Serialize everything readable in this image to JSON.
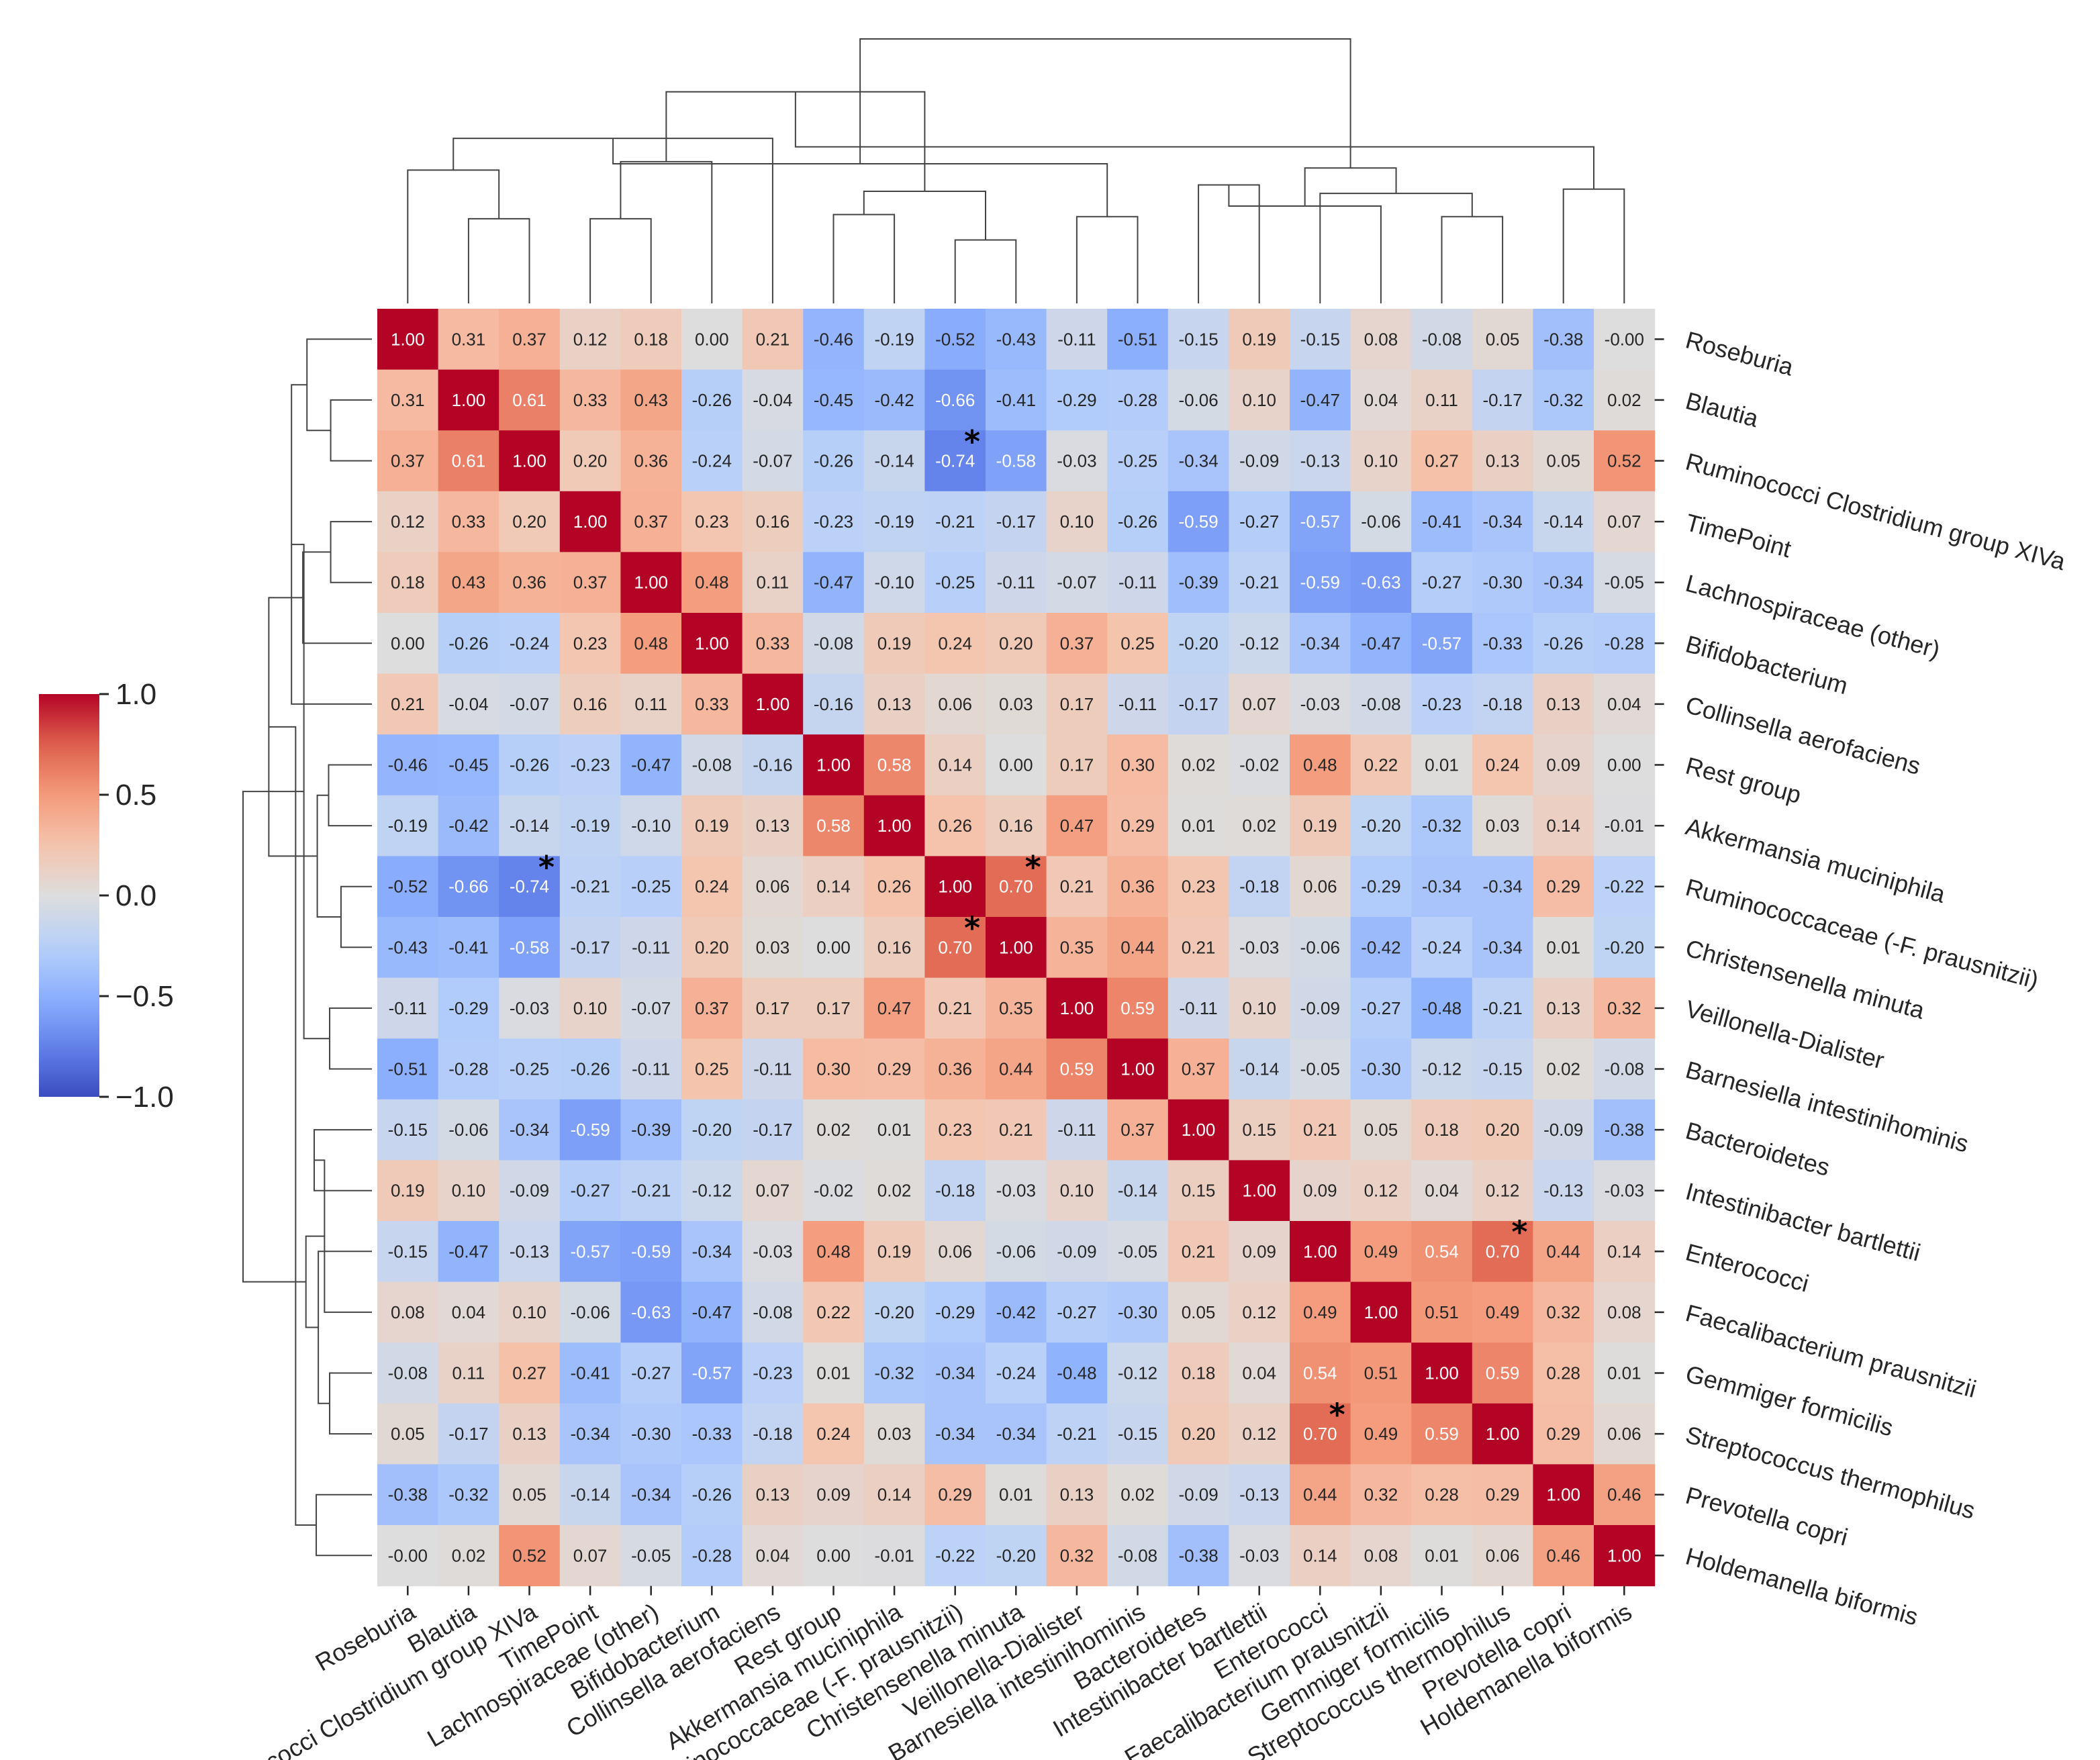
{
  "chart_data": {
    "type": "heatmap",
    "title": "",
    "variant": "clustered correlation heatmap with dendrograms",
    "labels": [
      "Roseburia",
      "Blautia",
      "Ruminococci Clostridium group XIVa",
      "TimePoint",
      "Lachnospiraceae (other)",
      "Bifidobacterium",
      "Collinsella aerofaciens",
      "Rest group",
      "Akkermansia muciniphila",
      "Ruminococcaceae (-F. prausnitzii)",
      "Christensenella minuta",
      "Veillonella-Dialister",
      "Barnesiella intestinihominis",
      "Bacteroidetes",
      "Intestinibacter bartlettii",
      "Enterococci",
      "Faecalibacterium prausnitzii",
      "Gemmiger formicilis",
      "Streptococcus thermophilus",
      "Prevotella copri",
      "Holdemanella biformis"
    ],
    "matrix": [
      [
        "1.00",
        "0.31",
        "0.37",
        "0.12",
        "0.18",
        "0.00",
        "0.21",
        "-0.46",
        "-0.19",
        "-0.52",
        "-0.43",
        "-0.11",
        "-0.51",
        "-0.15",
        "0.19",
        "-0.15",
        "0.08",
        "-0.08",
        "0.05",
        "-0.38",
        "-0.00"
      ],
      [
        "0.31",
        "1.00",
        "0.61",
        "0.33",
        "0.43",
        "-0.26",
        "-0.04",
        "-0.45",
        "-0.42",
        "-0.66",
        "-0.41",
        "-0.29",
        "-0.28",
        "-0.06",
        "0.10",
        "-0.47",
        "0.04",
        "0.11",
        "-0.17",
        "-0.32",
        "0.02"
      ],
      [
        "0.37",
        "0.61",
        "1.00",
        "0.20",
        "0.36",
        "-0.24",
        "-0.07",
        "-0.26",
        "-0.14",
        "-0.74",
        "-0.58",
        "-0.03",
        "-0.25",
        "-0.34",
        "-0.09",
        "-0.13",
        "0.10",
        "0.27",
        "0.13",
        "0.05",
        "0.52"
      ],
      [
        "0.12",
        "0.33",
        "0.20",
        "1.00",
        "0.37",
        "0.23",
        "0.16",
        "-0.23",
        "-0.19",
        "-0.21",
        "-0.17",
        "0.10",
        "-0.26",
        "-0.59",
        "-0.27",
        "-0.57",
        "-0.06",
        "-0.41",
        "-0.34",
        "-0.14",
        "0.07"
      ],
      [
        "0.18",
        "0.43",
        "0.36",
        "0.37",
        "1.00",
        "0.48",
        "0.11",
        "-0.47",
        "-0.10",
        "-0.25",
        "-0.11",
        "-0.07",
        "-0.11",
        "-0.39",
        "-0.21",
        "-0.59",
        "-0.63",
        "-0.27",
        "-0.30",
        "-0.34",
        "-0.05"
      ],
      [
        "0.00",
        "-0.26",
        "-0.24",
        "0.23",
        "0.48",
        "1.00",
        "0.33",
        "-0.08",
        "0.19",
        "0.24",
        "0.20",
        "0.37",
        "0.25",
        "-0.20",
        "-0.12",
        "-0.34",
        "-0.47",
        "-0.57",
        "-0.33",
        "-0.26",
        "-0.28"
      ],
      [
        "0.21",
        "-0.04",
        "-0.07",
        "0.16",
        "0.11",
        "0.33",
        "1.00",
        "-0.16",
        "0.13",
        "0.06",
        "0.03",
        "0.17",
        "-0.11",
        "-0.17",
        "0.07",
        "-0.03",
        "-0.08",
        "-0.23",
        "-0.18",
        "0.13",
        "0.04"
      ],
      [
        "-0.46",
        "-0.45",
        "-0.26",
        "-0.23",
        "-0.47",
        "-0.08",
        "-0.16",
        "1.00",
        "0.58",
        "0.14",
        "0.00",
        "0.17",
        "0.30",
        "0.02",
        "-0.02",
        "0.48",
        "0.22",
        "0.01",
        "0.24",
        "0.09",
        "0.00"
      ],
      [
        "-0.19",
        "-0.42",
        "-0.14",
        "-0.19",
        "-0.10",
        "0.19",
        "0.13",
        "0.58",
        "1.00",
        "0.26",
        "0.16",
        "0.47",
        "0.29",
        "0.01",
        "0.02",
        "0.19",
        "-0.20",
        "-0.32",
        "0.03",
        "0.14",
        "-0.01"
      ],
      [
        "-0.52",
        "-0.66",
        "-0.74",
        "-0.21",
        "-0.25",
        "0.24",
        "0.06",
        "0.14",
        "0.26",
        "1.00",
        "0.70",
        "0.21",
        "0.36",
        "0.23",
        "-0.18",
        "0.06",
        "-0.29",
        "-0.34",
        "-0.34",
        "0.29",
        "-0.22"
      ],
      [
        "-0.43",
        "-0.41",
        "-0.58",
        "-0.17",
        "-0.11",
        "0.20",
        "0.03",
        "0.00",
        "0.16",
        "0.70",
        "1.00",
        "0.35",
        "0.44",
        "0.21",
        "-0.03",
        "-0.06",
        "-0.42",
        "-0.24",
        "-0.34",
        "0.01",
        "-0.20"
      ],
      [
        "-0.11",
        "-0.29",
        "-0.03",
        "0.10",
        "-0.07",
        "0.37",
        "0.17",
        "0.17",
        "0.47",
        "0.21",
        "0.35",
        "1.00",
        "0.59",
        "-0.11",
        "0.10",
        "-0.09",
        "-0.27",
        "-0.48",
        "-0.21",
        "0.13",
        "0.32"
      ],
      [
        "-0.51",
        "-0.28",
        "-0.25",
        "-0.26",
        "-0.11",
        "0.25",
        "-0.11",
        "0.30",
        "0.29",
        "0.36",
        "0.44",
        "0.59",
        "1.00",
        "0.37",
        "-0.14",
        "-0.05",
        "-0.30",
        "-0.12",
        "-0.15",
        "0.02",
        "-0.08"
      ],
      [
        "-0.15",
        "-0.06",
        "-0.34",
        "-0.59",
        "-0.39",
        "-0.20",
        "-0.17",
        "0.02",
        "0.01",
        "0.23",
        "0.21",
        "-0.11",
        "0.37",
        "1.00",
        "0.15",
        "0.21",
        "0.05",
        "0.18",
        "0.20",
        "-0.09",
        "-0.38"
      ],
      [
        "0.19",
        "0.10",
        "-0.09",
        "-0.27",
        "-0.21",
        "-0.12",
        "0.07",
        "-0.02",
        "0.02",
        "-0.18",
        "-0.03",
        "0.10",
        "-0.14",
        "0.15",
        "1.00",
        "0.09",
        "0.12",
        "0.04",
        "0.12",
        "-0.13",
        "-0.03"
      ],
      [
        "-0.15",
        "-0.47",
        "-0.13",
        "-0.57",
        "-0.59",
        "-0.34",
        "-0.03",
        "0.48",
        "0.19",
        "0.06",
        "-0.06",
        "-0.09",
        "-0.05",
        "0.21",
        "0.09",
        "1.00",
        "0.49",
        "0.54",
        "0.70",
        "0.44",
        "0.14"
      ],
      [
        "0.08",
        "0.04",
        "0.10",
        "-0.06",
        "-0.63",
        "-0.47",
        "-0.08",
        "0.22",
        "-0.20",
        "-0.29",
        "-0.42",
        "-0.27",
        "-0.30",
        "0.05",
        "0.12",
        "0.49",
        "1.00",
        "0.51",
        "0.49",
        "0.32",
        "0.08"
      ],
      [
        "-0.08",
        "0.11",
        "0.27",
        "-0.41",
        "-0.27",
        "-0.57",
        "-0.23",
        "0.01",
        "-0.32",
        "-0.34",
        "-0.24",
        "-0.48",
        "-0.12",
        "0.18",
        "0.04",
        "0.54",
        "0.51",
        "1.00",
        "0.59",
        "0.28",
        "0.01"
      ],
      [
        "0.05",
        "-0.17",
        "0.13",
        "-0.34",
        "-0.30",
        "-0.33",
        "-0.18",
        "0.24",
        "0.03",
        "-0.34",
        "-0.34",
        "-0.21",
        "-0.15",
        "0.20",
        "0.12",
        "0.70",
        "0.49",
        "0.59",
        "1.00",
        "0.29",
        "0.06"
      ],
      [
        "-0.38",
        "-0.32",
        "0.05",
        "-0.14",
        "-0.34",
        "-0.26",
        "0.13",
        "0.09",
        "0.14",
        "0.29",
        "0.01",
        "0.13",
        "0.02",
        "-0.09",
        "-0.13",
        "0.44",
        "0.32",
        "0.28",
        "0.29",
        "1.00",
        "0.46"
      ],
      [
        "-0.00",
        "0.02",
        "0.52",
        "0.07",
        "-0.05",
        "-0.28",
        "0.04",
        "0.00",
        "-0.01",
        "-0.22",
        "-0.20",
        "0.32",
        "-0.08",
        "-0.38",
        "-0.03",
        "0.14",
        "0.08",
        "0.01",
        "0.06",
        "0.46",
        "1.00"
      ]
    ],
    "significant_cells": [
      [
        2,
        9
      ],
      [
        9,
        2
      ],
      [
        9,
        10
      ],
      [
        10,
        9
      ],
      [
        15,
        18
      ],
      [
        18,
        15
      ]
    ],
    "significance_marker": "*",
    "colorbar": {
      "colormap": "coolwarm",
      "range": [
        -1.0,
        1.0
      ],
      "ticks": [
        1.0,
        0.5,
        0.0,
        -0.5,
        -1.0
      ],
      "tick_labels": [
        "1.0",
        "0.5",
        "0.0",
        "−0.5",
        "−1.0"
      ],
      "position": "left"
    },
    "colors": {
      "low": "#3b4cc0",
      "mid": "#dddddd",
      "high": "#b40426"
    }
  }
}
